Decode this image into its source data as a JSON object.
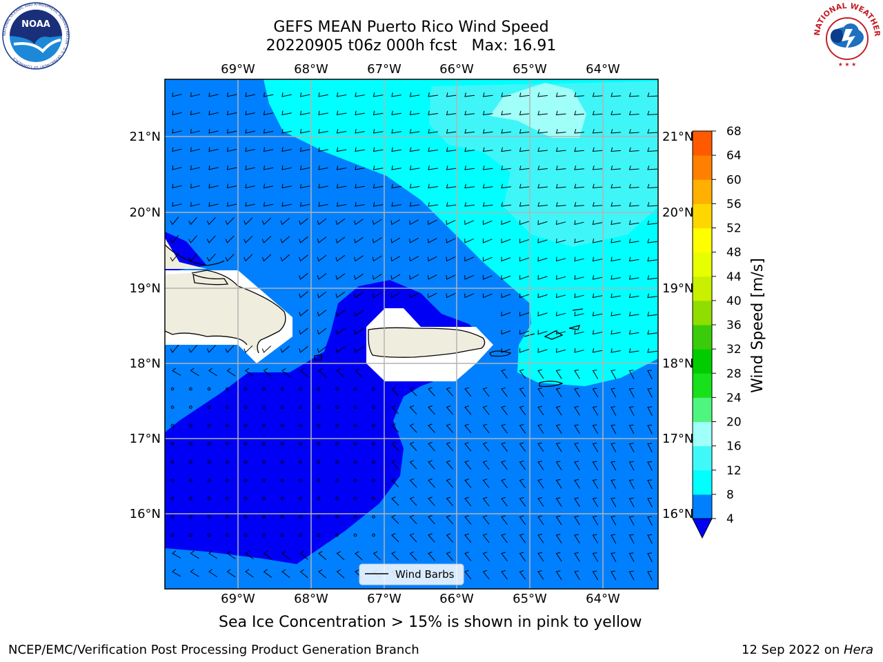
{
  "title": {
    "line1": "GEFS MEAN Puerto Rico Wind Speed",
    "line2": "20220905 t06z 000h fcst   Max: 16.91"
  },
  "map": {
    "lon_labels": [
      "69°W",
      "68°W",
      "67°W",
      "66°W",
      "65°W",
      "64°W"
    ],
    "lat_labels": [
      "21°N",
      "20°N",
      "19°N",
      "18°N",
      "17°N",
      "16°N"
    ],
    "legend_label": "Wind Barbs",
    "colors": {
      "land": "#efedde",
      "lt4": "#0000f5",
      "r4_8": "#0080ff",
      "r8_12": "#00ffff",
      "r12_16": "#3ff5f8",
      "r16_20": "#a0fff8"
    }
  },
  "colorbar": {
    "label": "Wind Speed [m/s]",
    "ticks": [
      "4",
      "8",
      "12",
      "16",
      "20",
      "24",
      "28",
      "32",
      "36",
      "40",
      "44",
      "48",
      "52",
      "56",
      "60",
      "64",
      "68"
    ],
    "colors": [
      "#0080ff",
      "#00ffff",
      "#40f8f8",
      "#a0fff8",
      "#50f580",
      "#18e01a",
      "#00cc00",
      "#3acc0a",
      "#90dd00",
      "#c8f000",
      "#e8ff00",
      "#ffff00",
      "#ffd700",
      "#ffb000",
      "#ff8000",
      "#ff5a00",
      "#ff2800"
    ],
    "under_color": "#0000f5"
  },
  "caption": "Sea Ice Concentration > 15% is shown in pink to yellow",
  "footer": {
    "left": "NCEP/EMC/Verification Post Processing Product Generation Branch",
    "right_date": "12 Sep 2022 on ",
    "right_machine": "Hera"
  },
  "logos": {
    "noaa_text": "NOAA",
    "noaa_ring": "NATIONAL OCEANIC AND ATMOSPHERIC ADMINISTRATION · U.S. DEPARTMENT OF COMMERCE",
    "nws_ring": "NATIONAL WEATHER SERVICE"
  }
}
